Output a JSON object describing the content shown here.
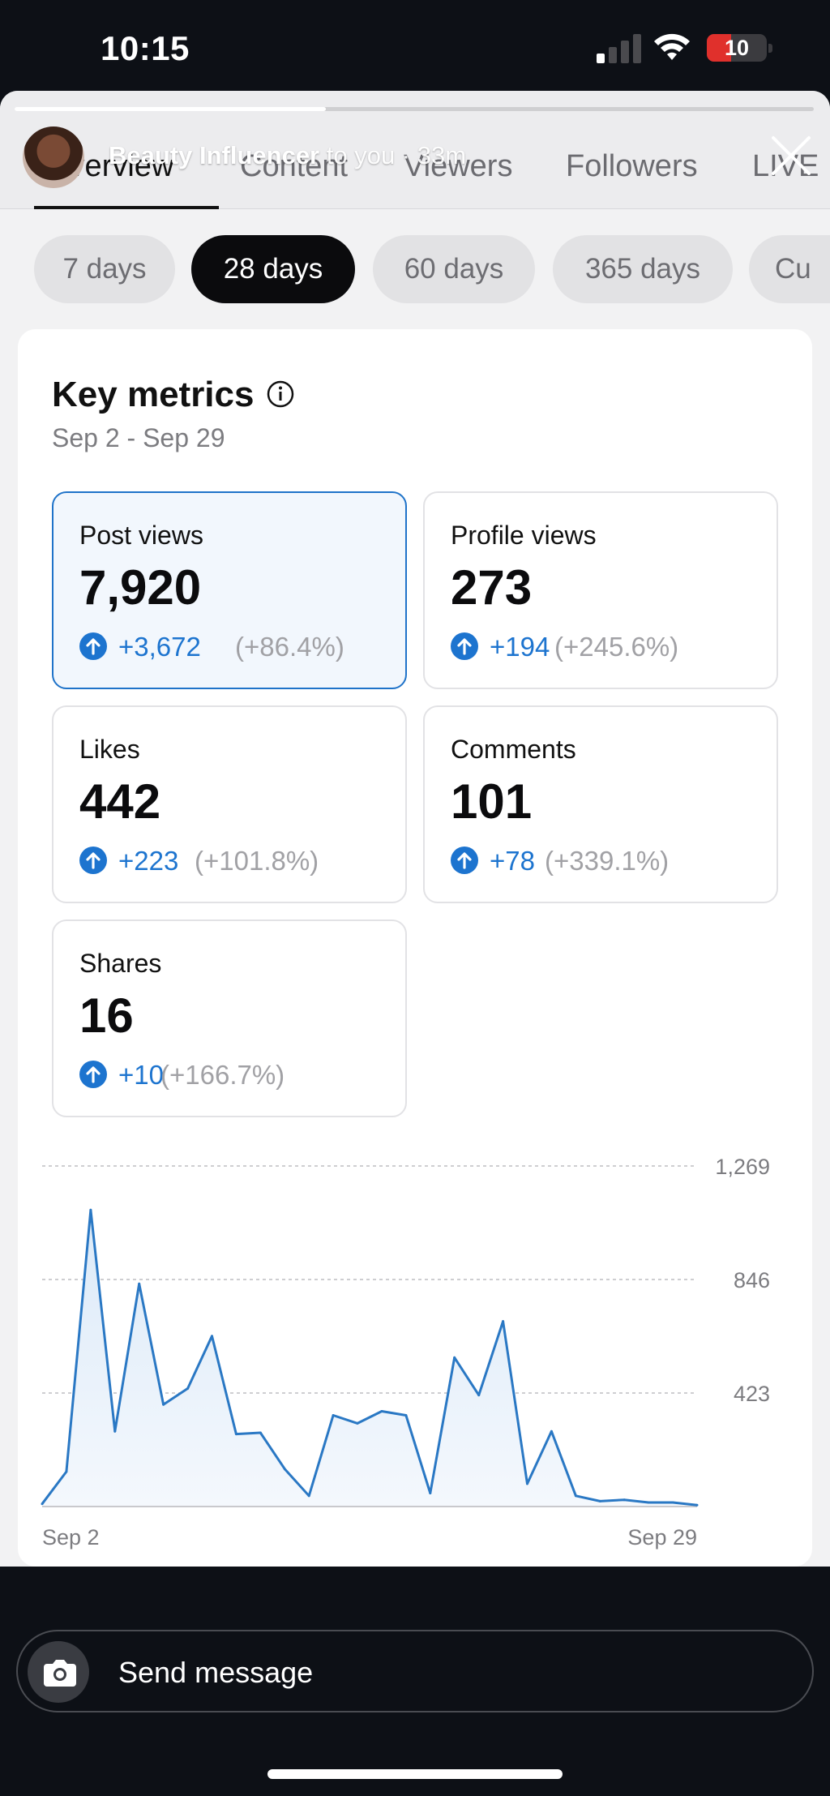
{
  "status_bar": {
    "time": "10:15",
    "battery": "10"
  },
  "story": {
    "username": "Beauty Influencer",
    "context": "to you · 33m"
  },
  "tabs": [
    "Overview",
    "Content",
    "Viewers",
    "Followers",
    "LIVE"
  ],
  "active_tab": "Overview",
  "ranges": [
    "7 days",
    "28 days",
    "60 days",
    "365 days",
    "Cu"
  ],
  "active_range": "28 days",
  "key_metrics": {
    "title": "Key metrics",
    "date_range": "Sep 2 - Sep 29",
    "metrics": [
      {
        "label": "Post views",
        "value": "7,920",
        "delta": "+3,672",
        "pct": "(+86.4%)",
        "selected": true
      },
      {
        "label": "Profile views",
        "value": "273",
        "delta": "+194",
        "pct": "(+245.6%)",
        "selected": false
      },
      {
        "label": "Likes",
        "value": "442",
        "delta": "+223",
        "pct": "(+101.8%)",
        "selected": false
      },
      {
        "label": "Comments",
        "value": "101",
        "delta": "+78",
        "pct": "(+339.1%)",
        "selected": false
      },
      {
        "label": "Shares",
        "value": "16",
        "delta": "+10",
        "pct": "(+166.7%)",
        "selected": false
      }
    ]
  },
  "chart_data": {
    "type": "area",
    "x_start_label": "Sep 2",
    "x_end_label": "Sep 29",
    "y_ticks": [
      {
        "value": 1269,
        "label": "1,269"
      },
      {
        "value": 846,
        "label": "846"
      },
      {
        "value": 423,
        "label": "423"
      }
    ],
    "ylim": [
      0,
      1269
    ],
    "grid": true,
    "values": [
      10,
      130,
      1105,
      280,
      830,
      380,
      440,
      635,
      270,
      275,
      140,
      40,
      340,
      310,
      355,
      340,
      50,
      555,
      415,
      690,
      85,
      280,
      40,
      20,
      25,
      15,
      15,
      5
    ]
  },
  "colors": {
    "accent": "#1d74cf",
    "chart_line": "#2a78c4",
    "chart_fill": "#dceaf8"
  },
  "message_bar": {
    "placeholder": "Send message"
  }
}
